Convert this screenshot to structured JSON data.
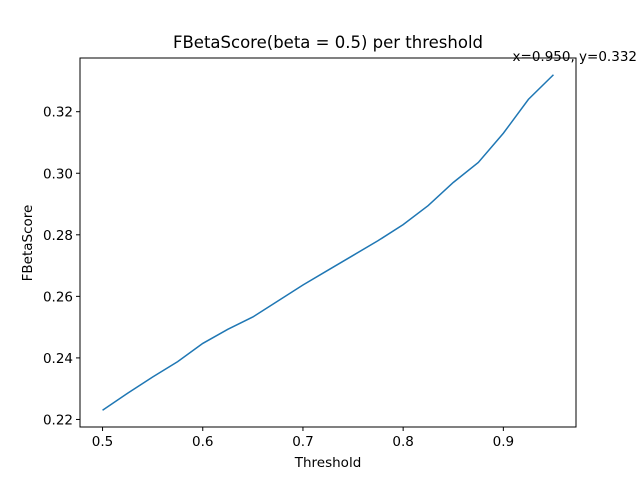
{
  "chart_data": {
    "type": "line",
    "title": "FBetaScore(beta = 0.5) per threshold",
    "x_label": "Threshold",
    "y_label": "FBetaScore",
    "annotation": "x=0.950, y=0.332",
    "x": [
      0.5,
      0.525,
      0.55,
      0.575,
      0.6,
      0.625,
      0.65,
      0.675,
      0.7,
      0.725,
      0.75,
      0.775,
      0.8,
      0.825,
      0.85,
      0.875,
      0.9,
      0.925,
      0.95
    ],
    "series": [
      {
        "name": "FBetaScore",
        "color": "#1f77b4",
        "values": [
          0.223,
          0.2285,
          0.2338,
          0.2388,
          0.2447,
          0.2493,
          0.2533,
          0.2585,
          0.2637,
          0.2685,
          0.2733,
          0.2781,
          0.2833,
          0.2895,
          0.297,
          0.3035,
          0.313,
          0.324,
          0.332
        ]
      }
    ],
    "xlim": [
      0.4775,
      0.9725
    ],
    "xticks": [
      0.5,
      0.6,
      0.7,
      0.8,
      0.9
    ],
    "ylim": [
      0.21755,
      0.33745
    ],
    "yticks": [
      0.22,
      0.24,
      0.26,
      0.28,
      {
        "value": 0.3,
        "label": "0.30"
      },
      0.32
    ]
  }
}
